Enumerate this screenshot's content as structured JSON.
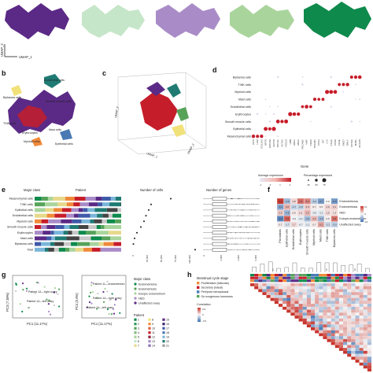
{
  "colors": {
    "purple_dark": "#5b2a86",
    "green_light": "#c6e6c9",
    "lavender": "#a98cc7",
    "green_mid": "#a9d59c",
    "green_dark": "#0e8a4c",
    "red": "#c61d2a",
    "teal": "#1f7b74",
    "yellow": "#f1e17a",
    "orange": "#f08a3a",
    "blue": "#4a79b4"
  },
  "panel_a": {
    "xlabel": "UMAP_1",
    "ylabel": "UMAP_2"
  },
  "panel_b": {
    "label": "b",
    "annotations": [
      "Endothelial cells",
      "B/plasma cells",
      "Smooth muscle cells",
      "T/NK cells",
      "Erythrocytes",
      "Mast cells",
      "Myeloid cells",
      "Epithelial cells"
    ]
  },
  "panel_c": {
    "label": "c",
    "axes": [
      "UMAP_1",
      "UMAP_2",
      "UMAP_3"
    ]
  },
  "panel_d": {
    "label": "d",
    "rows": [
      "B/plasma cells",
      "T/NK cells",
      "Myeloid cells",
      "Mast cells",
      "Endothelial cells",
      "Erythrocytes",
      "Smooth muscle cells",
      "Epithelial cells",
      "Mesenchymal cells"
    ],
    "genes": [
      "DCN",
      "LUM",
      "COL1A2",
      "KRT8",
      "EPCAM",
      "KRT18",
      "MYH11",
      "ACTA2",
      "TAGLN",
      "HBB",
      "HBA1",
      "HBA2",
      "PECAM1",
      "VWF",
      "CDH5",
      "TPSAB1",
      "CPA3",
      "KIT",
      "LYZ",
      "C1QA",
      "CD68",
      "CD3E",
      "NKG7",
      "GNLY",
      "CD79A",
      "MZB1",
      "JCHAIN"
    ],
    "gene_axis_label": "Gene",
    "avg_expr_label": "Average expression",
    "avg_expr_ticks": [
      "-1",
      "0",
      "1",
      "2"
    ],
    "pct_expr_label": "Percentage expressed",
    "pct_expr_ticks": [
      "25",
      "50",
      "75"
    ]
  },
  "panel_e": {
    "label": "e",
    "headers": [
      "Major class",
      "Patient",
      "Number of cells",
      "Number of genes"
    ],
    "rows": [
      "Mesenchymal cells",
      "T/NK cells",
      "Epithelial cells",
      "Endothelial cells",
      "Myeloid cells",
      "Smooth muscle cells",
      "Erythrocytes",
      "Mast cells",
      "B/plasma cells",
      "Total"
    ],
    "cells_ticks": [
      "0",
      "25,000",
      "50,000",
      "75,000",
      "100,000"
    ],
    "genes_ticks": [
      "0",
      "2,000",
      "4,000",
      "6,000"
    ]
  },
  "panel_f": {
    "label": "f",
    "cols": [
      "Fibroblasts",
      "Epithelial cells",
      "Endothelial cells",
      "Erythrocytes",
      "Smooth muscle cells",
      "Myeloid cells",
      "Mast cells",
      "T/NK cells",
      "B/plasma cells"
    ],
    "legend": [
      "Endometrioma",
      "Endometriosis",
      "NED",
      "Eutopic endometrium",
      "Unaffected ovary"
    ],
    "scale_ticks": [
      "10",
      "0",
      "-10"
    ],
    "values": [
      [
        9.6,
        -4.6,
        1.8,
        6.9,
        5.9,
        -3.4,
        -6.7,
        0.0,
        -6.8
      ],
      [
        -6.1,
        3.6,
        -2.7,
        -2.8,
        2.4,
        0.7,
        0.5,
        1.9,
        2.1
      ],
      [
        2.5,
        -4.8,
        0.8,
        1.6,
        3.3,
        -0.9,
        -1.1,
        1.6,
        1.3
      ],
      [
        -8.2,
        7.8,
        -0.4,
        -1.1,
        -4.4,
        3.3,
        -4.6,
        0.6,
        6.8
      ],
      [
        0.7,
        -1.7,
        1.7,
        -0.7,
        -1.1,
        0.7,
        4.2,
        -2.2,
        -3.0
      ]
    ]
  },
  "panel_g": {
    "label": "g",
    "left": {
      "xlabel": "PC1 (11.17%)",
      "ylabel": "PC3 (7.38%)",
      "annotations": [
        "Patient 14—right ovary",
        "Patient 14—left ovary"
      ]
    },
    "right": {
      "xlabel": "PC1 (11.17%)",
      "ylabel": "PC4 (5.6%)",
      "annotations": [
        "Patient 11—endometrium",
        "Patient 14—right ovary",
        "Patient 14—left ovary"
      ]
    },
    "legend_major_class_title": "Major class",
    "legend_major_class": [
      "Endometrioma",
      "Endometriosis",
      "Eutopic endometrium",
      "NED",
      "Unaffected ovary"
    ],
    "legend_patient_title": "Patient",
    "legend_patient": [
      "1",
      "2",
      "3",
      "4",
      "5",
      "6",
      "7",
      "8",
      "9",
      "10",
      "11",
      "12",
      "13",
      "14",
      "15",
      "16",
      "17",
      "18",
      "19",
      "20",
      "21"
    ]
  },
  "panel_h": {
    "label": "h",
    "legend_title": "Menstrual cycle stage",
    "legend": [
      "Proliferative (follicular)",
      "Secretory (luteal)",
      "Peri/post menopausal",
      "On exogenous hormones"
    ],
    "corr_title": "Correlation",
    "corr_ticks": [
      "0.5",
      "0",
      "-0.5"
    ],
    "cluster_labels": [
      "1",
      "2",
      "3"
    ]
  }
}
